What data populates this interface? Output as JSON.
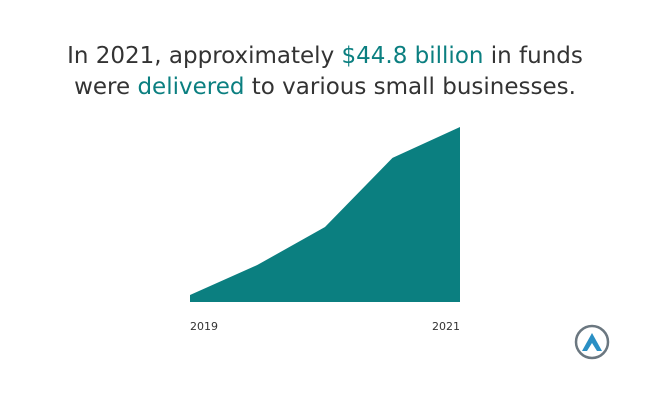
{
  "chart_data": {
    "type": "area",
    "title_lines": [
      [
        {
          "text": "In 2021, approximately ",
          "highlight": false
        },
        {
          "text": "$44.8 billion",
          "highlight": true
        },
        {
          "text": " in funds",
          "highlight": false
        }
      ],
      [
        {
          "text": "were ",
          "highlight": false
        },
        {
          "text": "delivered",
          "highlight": true
        },
        {
          "text": " to various small businesses.",
          "highlight": false
        }
      ]
    ],
    "text_color": "#333333",
    "highlight_color": "#0b7f80",
    "categories": [
      "2019",
      null,
      null,
      null,
      "2021"
    ],
    "values": [
      1.8,
      9.5,
      19.2,
      36.9,
      44.8
    ],
    "color": "#0b7f80",
    "ylim": [
      0,
      44.8
    ]
  }
}
